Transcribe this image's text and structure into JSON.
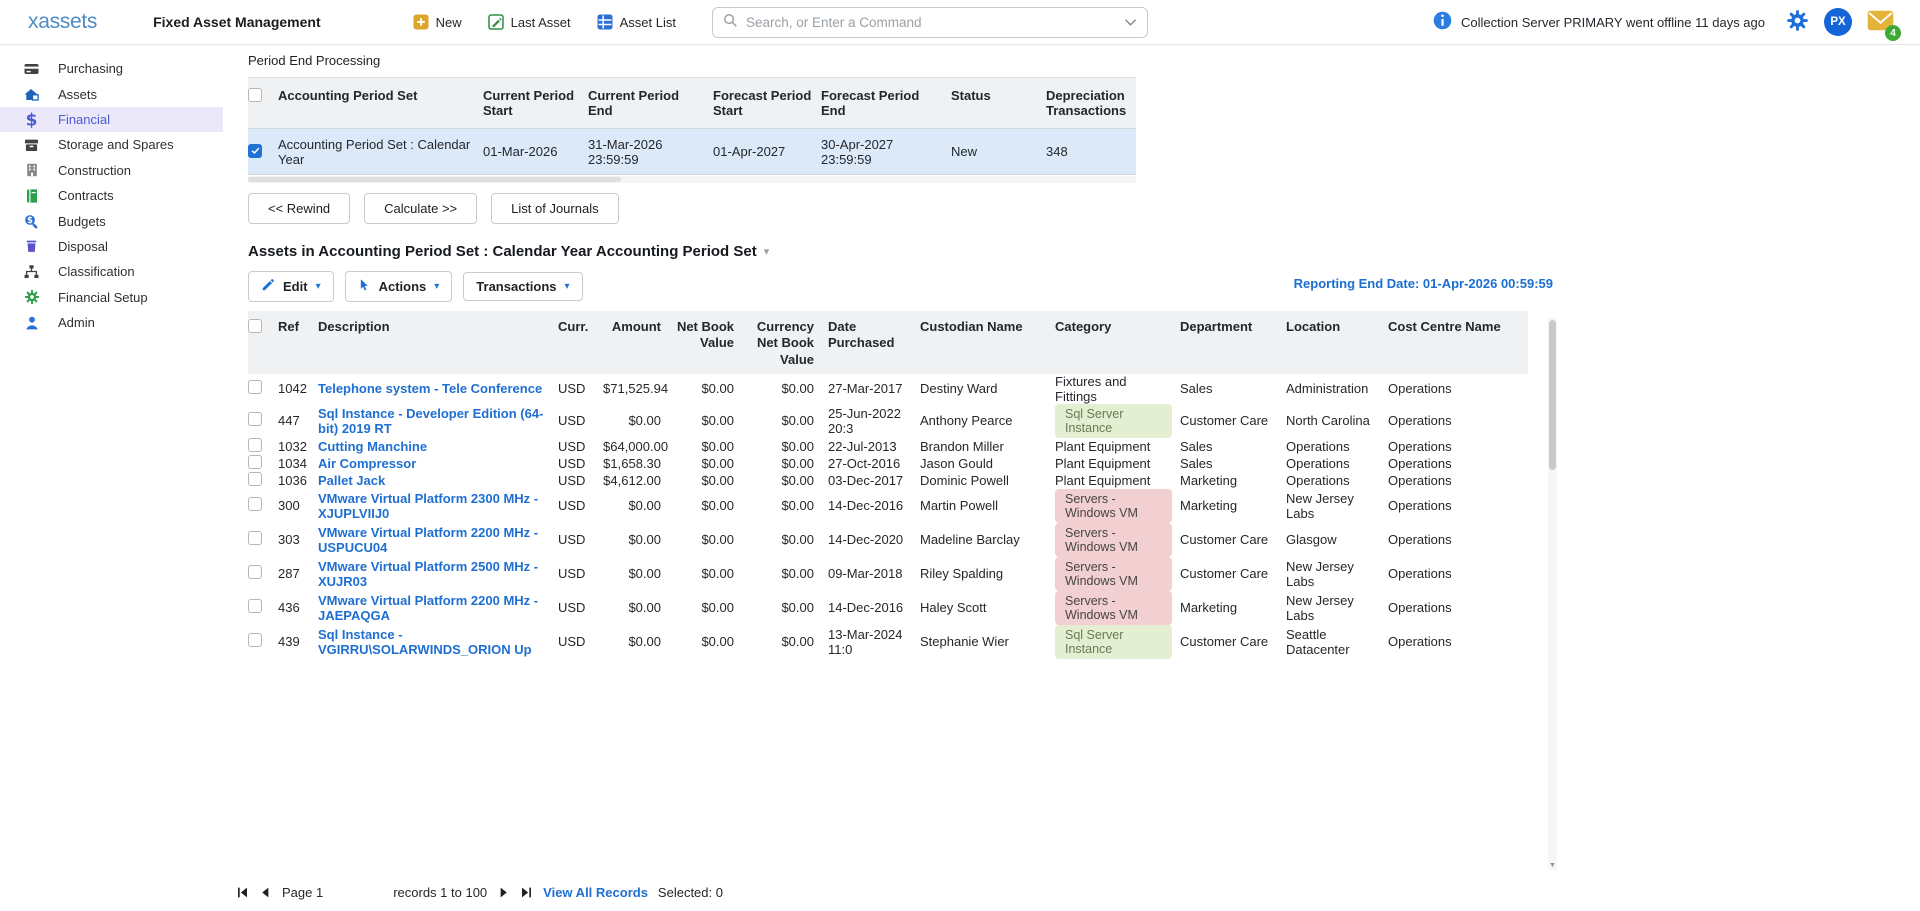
{
  "topbar": {
    "logo": "xassets",
    "app_title": "Fixed Asset Management",
    "quick_buttons": [
      {
        "label": "New",
        "icon": "plus-badge-icon"
      },
      {
        "label": "Last Asset",
        "icon": "edit-square-icon"
      },
      {
        "label": "Asset List",
        "icon": "grid-icon"
      }
    ],
    "search": {
      "placeholder": "Search, or Enter a Command"
    },
    "notification": "Collection Server PRIMARY went offline 11 days ago",
    "avatar_initials": "PX",
    "mail_badge": "4"
  },
  "sidebar": {
    "items": [
      {
        "label": "Purchasing",
        "icon": "credit-card-icon",
        "active": false
      },
      {
        "label": "Assets",
        "icon": "house-icon",
        "active": false
      },
      {
        "label": "Financial",
        "icon": "dollar-icon",
        "active": true
      },
      {
        "label": "Storage and Spares",
        "icon": "archive-box-icon",
        "active": false
      },
      {
        "label": "Construction",
        "icon": "building-icon",
        "active": false
      },
      {
        "label": "Contracts",
        "icon": "book-icon",
        "active": false
      },
      {
        "label": "Budgets",
        "icon": "search-dollar-icon",
        "active": false
      },
      {
        "label": "Disposal",
        "icon": "trash-icon",
        "active": false
      },
      {
        "label": "Classification",
        "icon": "sitemap-icon",
        "active": false
      },
      {
        "label": "Financial Setup",
        "icon": "gear-green-icon",
        "active": false
      },
      {
        "label": "Admin",
        "icon": "person-icon",
        "active": false
      }
    ]
  },
  "period_end": {
    "title": "Period End Processing",
    "columns": [
      "Accounting Period Set",
      "Current Period Start",
      "Current Period End",
      "Forecast Period Start",
      "Forecast Period End",
      "Status",
      "Depreciation Transactions"
    ],
    "row": {
      "checked": true,
      "accounting_period_set": "Accounting Period Set : Calendar Year",
      "current_period_start": "01-Mar-2026",
      "current_period_end": "31-Mar-2026 23:59:59",
      "forecast_period_start": "01-Apr-2027",
      "forecast_period_end": "30-Apr-2027 23:59:59",
      "status": "New",
      "depreciation_transactions": "348"
    },
    "buttons": {
      "rewind": "<< Rewind",
      "calculate": "Calculate >>",
      "journals": "List of Journals"
    }
  },
  "assets_section": {
    "heading": "Assets in Accounting Period Set : Calendar Year Accounting Period Set",
    "toolbar": {
      "edit": "Edit",
      "actions": "Actions",
      "transactions": "Transactions"
    },
    "reporting_end_date": "Reporting End Date: 01-Apr-2026 00:59:59",
    "columns": [
      "Ref",
      "Description",
      "Curr.",
      "Amount",
      "Net Book Value",
      "Currency Net Book Value",
      "Date Purchased",
      "Custodian Name",
      "Category",
      "Department",
      "Location",
      "Cost Centre Name"
    ],
    "rows": [
      {
        "ref": "1042",
        "description": "Telephone system - Tele Conference",
        "curr": "USD",
        "amount": "$71,525.94",
        "net_book_value": "$0.00",
        "currency_net_book_value": "$0.00",
        "date_purchased": "27-Mar-2017",
        "custodian_name": "Destiny Ward",
        "category": "Fixtures and Fittings",
        "category_badge": "none",
        "department": "Sales",
        "location": "Administration",
        "cost_centre_name": "Operations",
        "highlighted": false
      },
      {
        "ref": "447",
        "description": "Sql Instance - Developer Edition (64-bit) 2019 RT",
        "curr": "USD",
        "amount": "$0.00",
        "net_book_value": "$0.00",
        "currency_net_book_value": "$0.00",
        "date_purchased": "25-Jun-2022 20:3",
        "custodian_name": "Anthony Pearce",
        "category": "Sql Server Instance",
        "category_badge": "green",
        "department": "Customer Care",
        "location": "North Carolina",
        "cost_centre_name": "Operations",
        "highlighted": false
      },
      {
        "ref": "1032",
        "description": "Cutting Manchine",
        "curr": "USD",
        "amount": "$64,000.00",
        "net_book_value": "$0.00",
        "currency_net_book_value": "$0.00",
        "date_purchased": "22-Jul-2013",
        "custodian_name": "Brandon Miller",
        "category": "Plant Equipment",
        "category_badge": "none",
        "department": "Sales",
        "location": "Operations",
        "cost_centre_name": "Operations",
        "highlighted": false
      },
      {
        "ref": "1034",
        "description": "Air Compressor",
        "curr": "USD",
        "amount": "$1,658.30",
        "net_book_value": "$0.00",
        "currency_net_book_value": "$0.00",
        "date_purchased": "27-Oct-2016",
        "custodian_name": "Jason Gould",
        "category": "Plant Equipment",
        "category_badge": "none",
        "department": "Sales",
        "location": "Operations",
        "cost_centre_name": "Operations",
        "highlighted": false
      },
      {
        "ref": "1036",
        "description": "Pallet Jack",
        "curr": "USD",
        "amount": "$4,612.00",
        "net_book_value": "$0.00",
        "currency_net_book_value": "$0.00",
        "date_purchased": "03-Dec-2017",
        "custodian_name": "Dominic Powell",
        "category": "Plant Equipment",
        "category_badge": "none",
        "department": "Marketing",
        "location": "Operations",
        "cost_centre_name": "Operations",
        "highlighted": true
      },
      {
        "ref": "300",
        "description": "VMware Virtual Platform 2300 MHz - XJUPLVIIJ0",
        "curr": "USD",
        "amount": "$0.00",
        "net_book_value": "$0.00",
        "currency_net_book_value": "$0.00",
        "date_purchased": "14-Dec-2016",
        "custodian_name": "Martin Powell",
        "category": "Servers - Windows VM",
        "category_badge": "red",
        "department": "Marketing",
        "location": "New Jersey Labs",
        "cost_centre_name": "Operations",
        "highlighted": false
      },
      {
        "ref": "303",
        "description": "VMware Virtual Platform 2200 MHz - USPUCU04",
        "curr": "USD",
        "amount": "$0.00",
        "net_book_value": "$0.00",
        "currency_net_book_value": "$0.00",
        "date_purchased": "14-Dec-2020",
        "custodian_name": "Madeline Barclay",
        "category": "Servers - Windows VM",
        "category_badge": "red",
        "department": "Customer Care",
        "location": "Glasgow",
        "cost_centre_name": "Operations",
        "highlighted": false
      },
      {
        "ref": "287",
        "description": "VMware Virtual Platform 2500 MHz - XUJR03",
        "curr": "USD",
        "amount": "$0.00",
        "net_book_value": "$0.00",
        "currency_net_book_value": "$0.00",
        "date_purchased": "09-Mar-2018",
        "custodian_name": "Riley Spalding",
        "category": "Servers - Windows VM",
        "category_badge": "red",
        "department": "Customer Care",
        "location": "New Jersey Labs",
        "cost_centre_name": "Operations",
        "highlighted": false
      },
      {
        "ref": "436",
        "description": "VMware Virtual Platform 2200 MHz - JAEPAQGA",
        "curr": "USD",
        "amount": "$0.00",
        "net_book_value": "$0.00",
        "currency_net_book_value": "$0.00",
        "date_purchased": "14-Dec-2016",
        "custodian_name": "Haley Scott",
        "category": "Servers - Windows VM",
        "category_badge": "red",
        "department": "Marketing",
        "location": "New Jersey Labs",
        "cost_centre_name": "Operations",
        "highlighted": false
      },
      {
        "ref": "439",
        "description": "Sql Instance - VGIRRU\\SOLARWINDS_ORION Up",
        "curr": "USD",
        "amount": "$0.00",
        "net_book_value": "$0.00",
        "currency_net_book_value": "$0.00",
        "date_purchased": "13-Mar-2024 11:0",
        "custodian_name": "Stephanie Wier",
        "category": "Sql Server Instance",
        "category_badge": "green",
        "department": "Customer Care",
        "location": "Seattle Datacenter",
        "cost_centre_name": "Operations",
        "highlighted": false
      }
    ]
  },
  "pagination": {
    "page_label": "Page 1",
    "records_label": "records 1 to 100",
    "view_all": "View All Records",
    "selected_label": "Selected: 0"
  }
}
